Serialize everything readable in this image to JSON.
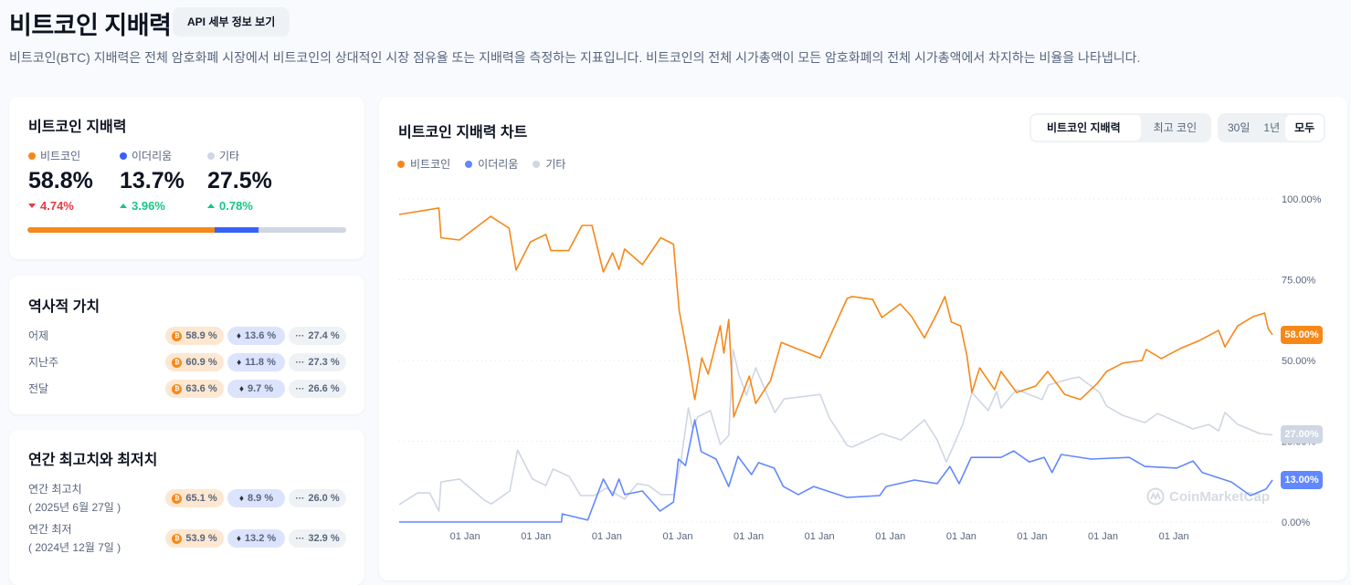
{
  "header": {
    "title": "비트코인 지배력",
    "api_button": "API 세부 정보 보기",
    "description": "비트코인(BTC) 지배력은 전체 암호화폐 시장에서 비트코인의 상대적인 시장 점유율 또는 지배력을 측정하는 지표입니다. 비트코인의 전체 시가총액이 모든 암호화폐의 전체 시가총액에서 차지하는 비율을 나타냅니다."
  },
  "summary": {
    "title": "비트코인 지배력",
    "items": [
      {
        "label": "비트코인",
        "value": "58.8%",
        "change": "4.74%",
        "direction": "down",
        "color": "#f68819"
      },
      {
        "label": "이더리움",
        "value": "13.7%",
        "change": "3.96%",
        "direction": "up",
        "color": "#3861fb"
      },
      {
        "label": "기타",
        "value": "27.5%",
        "change": "0.78%",
        "direction": "up",
        "color": "#cfd6e4"
      }
    ],
    "share_percent": [
      58.8,
      13.7,
      27.5
    ]
  },
  "historical": {
    "title": "역사적 가치",
    "rows": [
      {
        "label": "어제",
        "btc": "58.9 %",
        "eth": "13.6 %",
        "other": "27.4 %"
      },
      {
        "label": "지난주",
        "btc": "60.9 %",
        "eth": "11.8 %",
        "other": "27.3 %"
      },
      {
        "label": "전달",
        "btc": "63.6 %",
        "eth": "9.7 %",
        "other": "26.6 %"
      }
    ]
  },
  "yearly": {
    "title": "연간 최고치와 최저치",
    "rows": [
      {
        "label": "연간 최고치",
        "date": "( 2025년 6월 27일 )",
        "btc": "65.1 %",
        "eth": "8.9 %",
        "other": "26.0 %"
      },
      {
        "label": "연간 최저",
        "date": "( 2024년 12월 7일 )",
        "btc": "53.9 %",
        "eth": "13.2 %",
        "other": "32.9 %"
      }
    ]
  },
  "chart_panel": {
    "title": "비트코인 지배력 차트",
    "view_tabs": [
      {
        "label": "비트코인 지배력",
        "active": true
      },
      {
        "label": "최고 코인",
        "active": false
      }
    ],
    "range_tabs": [
      {
        "label": "30일",
        "active": false
      },
      {
        "label": "1년",
        "active": false
      },
      {
        "label": "모두",
        "active": true
      }
    ],
    "watermark": "CoinMarketCap"
  },
  "chart_data": {
    "type": "line",
    "x_unit": "year",
    "xlim": [
      2013.07,
      2025.39
    ],
    "ylim": [
      0,
      100
    ],
    "grid": true,
    "legend_placement": "top-left",
    "x_ticks": [
      2014,
      2015,
      2016,
      2017,
      2018,
      2019,
      2020,
      2021,
      2022,
      2023,
      2024
    ],
    "x_tick_labels": [
      "01 Jan",
      "01 Jan",
      "01 Jan",
      "01 Jan",
      "01 Jan",
      "01 Jan",
      "01 Jan",
      "01 Jan",
      "01 Jan",
      "01 Jan",
      "01 Jan"
    ],
    "y_ticks": [
      0,
      25,
      50,
      75,
      100
    ],
    "y_tick_labels": [
      "0.00%",
      "25.00%",
      "50.00%",
      "75.00%",
      "100.00%"
    ],
    "series": [
      {
        "name": "비트코인",
        "color": "#f68819",
        "last_label": "58.00%",
        "x": [
          2013.07,
          2013.63,
          2013.66,
          2013.92,
          2014.36,
          2014.62,
          2014.72,
          2014.92,
          2015.14,
          2015.21,
          2015.46,
          2015.65,
          2015.79,
          2015.95,
          2016.08,
          2016.17,
          2016.25,
          2016.5,
          2016.76,
          2016.94,
          2017.02,
          2017.14,
          2017.24,
          2017.34,
          2017.43,
          2017.6,
          2017.65,
          2017.72,
          2017.79,
          2018.01,
          2018.1,
          2018.31,
          2018.46,
          2019.01,
          2019.17,
          2019.39,
          2019.46,
          2019.75,
          2019.88,
          2020.14,
          2020.3,
          2020.48,
          2020.66,
          2020.77,
          2020.86,
          2020.99,
          2021.08,
          2021.15,
          2021.26,
          2021.47,
          2021.56,
          2021.78,
          2022.05,
          2022.22,
          2022.46,
          2022.68,
          2022.92,
          2023.05,
          2023.28,
          2023.55,
          2023.61,
          2023.82,
          2024.09,
          2024.36,
          2024.63,
          2024.72,
          2024.9,
          2025.12,
          2025.28,
          2025.33,
          2025.39
        ],
        "y": [
          95.2,
          97.2,
          88,
          87.3,
          94.6,
          91,
          78,
          86.7,
          89,
          84,
          84,
          91.8,
          91.8,
          77.4,
          83.3,
          78.2,
          84.5,
          79.7,
          88,
          86,
          65.5,
          51.4,
          37.9,
          50.8,
          45.8,
          60.7,
          52.3,
          62.7,
          32.5,
          45.2,
          36.7,
          43.8,
          55.6,
          50.8,
          58.5,
          69.2,
          69.8,
          68.9,
          63.3,
          67.5,
          63.6,
          57,
          64.7,
          69.8,
          61.9,
          60.7,
          51.4,
          40.1,
          47.7,
          41,
          46.6,
          40.1,
          42.1,
          46.6,
          39.5,
          37.9,
          42.9,
          46.6,
          49.2,
          50,
          53.4,
          50.6,
          53.7,
          56.2,
          59.3,
          54.2,
          60.7,
          63.6,
          64.7,
          59.9,
          58
        ]
      },
      {
        "name": "이더리움",
        "color": "#6188ff",
        "last_label": "13.00%",
        "x": [
          2013.07,
          2015.36,
          2015.37,
          2015.73,
          2015.95,
          2016.08,
          2016.17,
          2016.25,
          2016.5,
          2016.75,
          2016.94,
          2017.01,
          2017.11,
          2017.24,
          2017.33,
          2017.54,
          2017.72,
          2017.85,
          2018.04,
          2018.14,
          2018.36,
          2018.49,
          2018.7,
          2018.92,
          2019.39,
          2019.85,
          2019.94,
          2020.34,
          2020.66,
          2020.84,
          2020.97,
          2021.14,
          2021.56,
          2021.74,
          2021.96,
          2022.17,
          2022.28,
          2022.41,
          2022.83,
          2023.37,
          2023.59,
          2024.04,
          2024.27,
          2024.4,
          2024.81,
          2025.08,
          2025.3,
          2025.39
        ],
        "y": [
          0,
          0,
          2.5,
          0.6,
          13.3,
          8.2,
          13.3,
          8.5,
          9.6,
          3.4,
          6.2,
          19.5,
          17.5,
          31.6,
          21.8,
          19.5,
          11,
          20.3,
          14.7,
          18.4,
          16.7,
          11,
          8.5,
          11,
          7.6,
          8.2,
          11,
          13,
          11.9,
          17.2,
          11.9,
          20,
          20,
          22,
          18.6,
          20,
          15.3,
          20.9,
          19.5,
          20,
          17.2,
          16.7,
          18.9,
          15.3,
          12.4,
          8.2,
          10.2,
          13
        ]
      },
      {
        "name": "기타",
        "color": "#cfd6e4",
        "last_label": "27.00%",
        "x": [
          2013.07,
          2013.33,
          2013.5,
          2013.63,
          2013.66,
          2013.92,
          2014.27,
          2014.37,
          2014.63,
          2014.74,
          2014.95,
          2015.14,
          2015.24,
          2015.47,
          2015.63,
          2015.82,
          2015.99,
          2016.25,
          2016.43,
          2016.59,
          2016.76,
          2016.95,
          2017.05,
          2017.15,
          2017.21,
          2017.28,
          2017.46,
          2017.6,
          2017.72,
          2017.78,
          2017.86,
          2017.97,
          2018.1,
          2018.37,
          2018.5,
          2019.01,
          2019.14,
          2019.3,
          2019.39,
          2019.46,
          2019.88,
          2020.15,
          2020.48,
          2020.66,
          2020.79,
          2021.02,
          2021.15,
          2021.38,
          2021.5,
          2021.56,
          2021.78,
          2022.14,
          2022.23,
          2022.55,
          2022.66,
          2022.95,
          2023.05,
          2023.28,
          2023.59,
          2023.77,
          2024.27,
          2024.49,
          2024.63,
          2024.72,
          2024.9,
          2025.21,
          2025.39
        ],
        "y": [
          5.4,
          9,
          9,
          3.4,
          12.4,
          13.3,
          6.8,
          5.6,
          9.6,
          22.3,
          13.3,
          11.3,
          16.4,
          14.1,
          8.2,
          8.2,
          10.5,
          7.1,
          11.9,
          11.3,
          8.5,
          8.5,
          19.5,
          35.3,
          28.8,
          32.5,
          34.5,
          24,
          26.8,
          53.4,
          45.8,
          39.3,
          47.7,
          33.9,
          38.1,
          39.5,
          32.2,
          26.8,
          23.7,
          23.2,
          27.4,
          25.4,
          31.6,
          25.4,
          18.6,
          30.2,
          40.1,
          34.5,
          40.4,
          35.3,
          41,
          37.9,
          42.4,
          44.4,
          44.9,
          40.1,
          35.9,
          33,
          30.8,
          33.6,
          28.8,
          30.2,
          28.2,
          33.9,
          30.2,
          27.4,
          27
        ]
      }
    ]
  }
}
